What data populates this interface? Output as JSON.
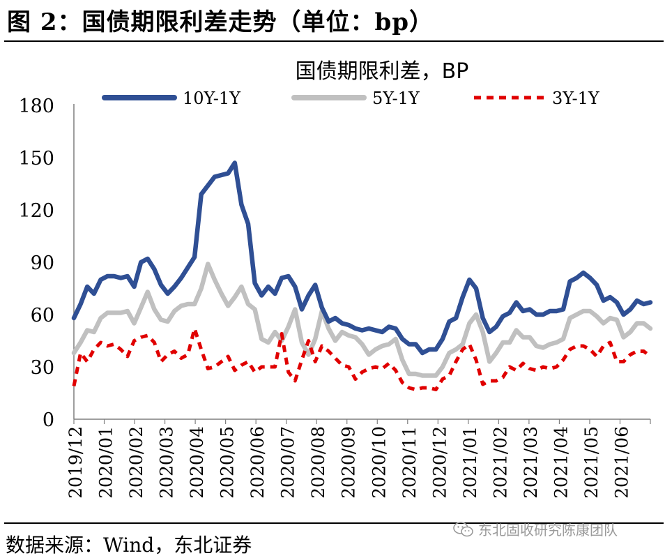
{
  "figure": {
    "title": "图  2：国债期限利差走势（单位：bp）",
    "source": "数据来源：Wind，东北证券",
    "watermark": "东北固收研究陈康团队",
    "watermark_icon": "wechat-icon"
  },
  "chart_data": {
    "type": "line",
    "title": "国债期限利差，BP",
    "xlabel": "",
    "ylabel": "",
    "ylim": [
      0,
      180
    ],
    "yticks": [
      0,
      30,
      60,
      90,
      120,
      150,
      180
    ],
    "x_tick_labels": [
      "2019/12",
      "2020/01",
      "2020/02",
      "2020/03",
      "2020/04",
      "2020/05",
      "2020/06",
      "2020/07",
      "2020/08",
      "2020/09",
      "2020/10",
      "2020/11",
      "2020/12",
      "2021/01",
      "2021/02",
      "2021/03",
      "2021/04",
      "2021/05",
      "2021/06"
    ],
    "legend_position": "top",
    "grid": false,
    "series": [
      {
        "name": "10Y-1Y",
        "color": "#2F4F94",
        "style": "solid",
        "values": [
          58,
          66,
          76,
          72,
          80,
          82,
          82,
          81,
          82,
          76,
          90,
          92,
          86,
          77,
          72,
          76,
          81,
          87,
          93,
          129,
          134,
          139,
          140,
          141,
          147,
          123,
          112,
          78,
          71,
          76,
          72,
          81,
          82,
          76,
          63,
          71,
          77,
          64,
          56,
          58,
          55,
          54,
          52,
          51,
          52,
          51,
          50,
          53,
          52,
          46,
          43,
          43,
          38,
          40,
          40,
          46,
          56,
          58,
          70,
          80,
          75,
          58,
          50,
          53,
          59,
          61,
          67,
          62,
          63,
          60,
          60,
          62,
          62,
          63,
          79,
          81,
          84,
          81,
          77,
          68,
          70,
          67,
          60,
          63,
          68,
          66,
          67
        ]
      },
      {
        "name": "5Y-1Y",
        "color": "#C0C0C0",
        "style": "solid",
        "values": [
          38,
          44,
          51,
          50,
          58,
          61,
          61,
          61,
          62,
          55,
          64,
          73,
          63,
          57,
          56,
          62,
          65,
          66,
          66,
          75,
          89,
          80,
          72,
          65,
          70,
          76,
          66,
          63,
          46,
          44,
          50,
          45,
          53,
          63,
          44,
          37,
          46,
          62,
          52,
          45,
          50,
          48,
          47,
          43,
          37,
          40,
          42,
          43,
          46,
          34,
          26,
          26,
          25,
          25,
          25,
          30,
          38,
          40,
          43,
          55,
          60,
          50,
          33,
          38,
          44,
          44,
          51,
          47,
          47,
          42,
          41,
          43,
          44,
          46,
          58,
          60,
          62,
          62,
          59,
          55,
          58,
          57,
          47,
          50,
          55,
          55,
          52
        ]
      },
      {
        "name": "3Y-1Y",
        "color": "#E00000",
        "style": "dashed",
        "values": [
          19,
          38,
          33,
          40,
          44,
          42,
          43,
          40,
          36,
          45,
          47,
          48,
          44,
          33,
          37,
          39,
          35,
          37,
          52,
          40,
          29,
          30,
          33,
          36,
          28,
          31,
          33,
          27,
          30,
          30,
          30,
          49,
          27,
          22,
          34,
          45,
          33,
          42,
          39,
          35,
          31,
          30,
          23,
          27,
          29,
          30,
          29,
          32,
          28,
          21,
          18,
          17,
          18,
          18,
          17,
          23,
          25,
          33,
          40,
          43,
          34,
          20,
          22,
          22,
          24,
          30,
          28,
          32,
          29,
          28,
          30,
          29,
          30,
          34,
          40,
          42,
          42,
          40,
          36,
          42,
          44,
          33,
          33,
          37,
          39,
          39,
          36
        ]
      }
    ]
  }
}
